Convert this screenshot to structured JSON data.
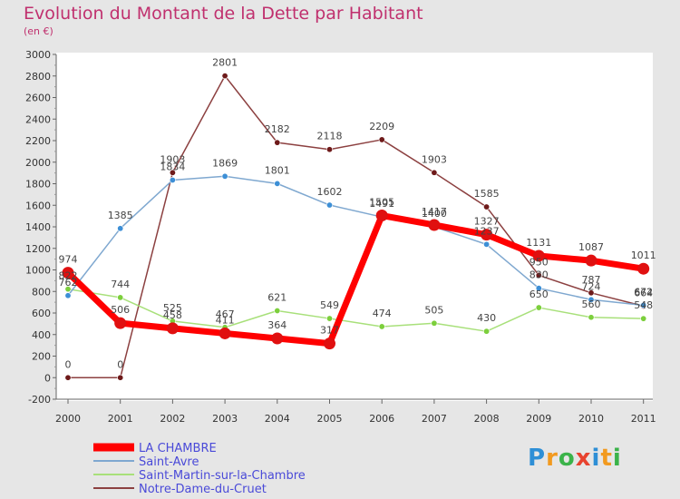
{
  "header": {
    "title": "Evolution du Montant de la Dette par Habitant",
    "subtitle": "(en €)"
  },
  "brand": {
    "letters": [
      {
        "char": "P",
        "color": "#2e8fd6"
      },
      {
        "char": "r",
        "color": "#f29a1f"
      },
      {
        "char": "o",
        "color": "#3bb34a"
      },
      {
        "char": "x",
        "color": "#e8432f"
      },
      {
        "char": "i",
        "color": "#2e8fd6"
      },
      {
        "char": "t",
        "color": "#f29a1f"
      },
      {
        "char": "i",
        "color": "#3bb34a"
      }
    ]
  },
  "chart_data": {
    "type": "line",
    "title": "Evolution du Montant de la Dette par Habitant",
    "subtitle": "(en €)",
    "xlabel": "",
    "ylabel": "",
    "x": [
      "2000",
      "2001",
      "2002",
      "2003",
      "2004",
      "2005",
      "2006",
      "2007",
      "2008",
      "2009",
      "2010",
      "2011"
    ],
    "ylim": [
      -200,
      3000
    ],
    "yticks": [
      -200,
      0,
      200,
      400,
      600,
      800,
      1000,
      1200,
      1400,
      1600,
      1800,
      2000,
      2200,
      2400,
      2600,
      2800,
      3000
    ],
    "grid": false,
    "legend": "bottom-left",
    "series": [
      {
        "name": "LA CHAMBRE",
        "color": "#ff0000",
        "marker": "#e01010",
        "values": [
          974,
          506,
          458,
          411,
          364,
          317,
          1505,
          1417,
          1327,
          1131,
          1087,
          1011
        ],
        "labels": [
          "974",
          "506",
          "458",
          "411",
          "364",
          "317",
          "1505",
          "1417",
          "1327",
          "1131",
          "1087",
          "1011"
        ]
      },
      {
        "name": "Saint-Avre",
        "color": "#7fa8d0",
        "marker": "#3d8fd6",
        "values": [
          762,
          1385,
          1834,
          1869,
          1801,
          1602,
          1491,
          1400,
          1237,
          830,
          724,
          672
        ],
        "labels": [
          "762",
          "1385",
          "1834",
          "1869",
          "1801",
          "1602",
          "1491",
          "1400",
          "1237",
          "830",
          "724",
          "672"
        ]
      },
      {
        "name": "Saint-Martin-sur-la-Chambre",
        "color": "#a8e07a",
        "marker": "#7ccf3c",
        "values": [
          822,
          744,
          525,
          467,
          621,
          549,
          474,
          505,
          430,
          650,
          560,
          548
        ],
        "labels": [
          "822",
          "744",
          "525",
          "467",
          "621",
          "549",
          "474",
          "505",
          "430",
          "650",
          "560",
          "548"
        ]
      },
      {
        "name": "Notre-Dame-du-Cruet",
        "color": "#8c4040",
        "marker": "#6e1a1a",
        "values": [
          0,
          0,
          1903,
          2801,
          2182,
          2118,
          2209,
          1903,
          1585,
          950,
          787,
          664
        ],
        "labels": [
          "0",
          "0",
          "1903",
          "2801",
          "2182",
          "2118",
          "2209",
          "1903",
          "1585",
          "950",
          "787",
          "664"
        ]
      }
    ]
  }
}
